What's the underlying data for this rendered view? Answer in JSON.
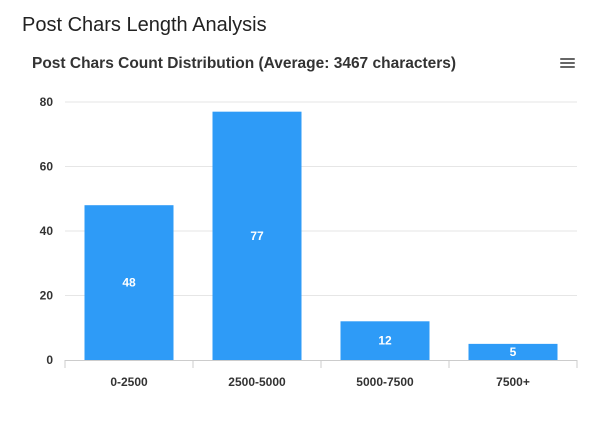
{
  "page": {
    "title": "Post Chars Length Analysis"
  },
  "chart_data": {
    "type": "bar",
    "title": "Post Chars Count Distribution (Average: 3467 characters)",
    "categories": [
      "0-2500",
      "2500-5000",
      "5000-7500",
      "7500+"
    ],
    "values": [
      48,
      77,
      12,
      5
    ],
    "ylim": [
      0,
      80
    ],
    "yticks": [
      0,
      20,
      40,
      60,
      80
    ],
    "xlabel": "",
    "ylabel": "",
    "grid": true,
    "bar_color": "#2E9BF7",
    "data_labels": true
  },
  "menu": {
    "icon": "hamburger-menu-icon"
  }
}
